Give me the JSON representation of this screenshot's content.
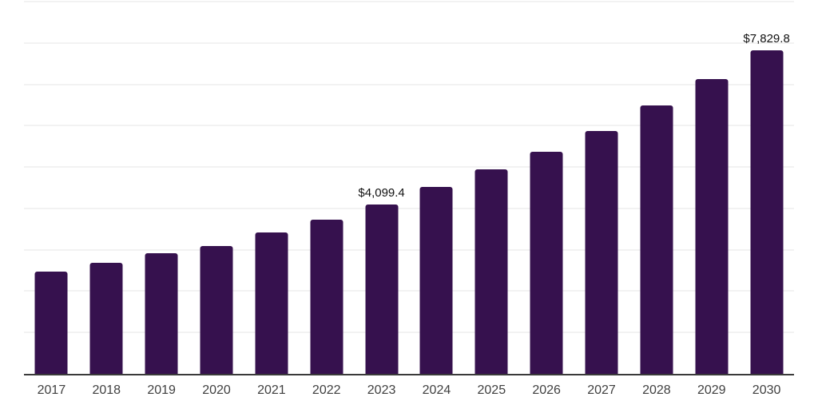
{
  "chart_data": {
    "type": "bar",
    "categories": [
      "2017",
      "2018",
      "2019",
      "2020",
      "2021",
      "2022",
      "2023",
      "2024",
      "2025",
      "2026",
      "2027",
      "2028",
      "2029",
      "2030"
    ],
    "values": [
      2480,
      2680,
      2910,
      3095,
      3410,
      3735,
      4099.4,
      4510,
      4935,
      5375,
      5875,
      6480,
      7130,
      7829.8
    ],
    "annotations": [
      {
        "category": "2023",
        "label": "$4,099.4"
      },
      {
        "category": "2030",
        "label": "$7,829.8"
      }
    ],
    "value_prefix": "$",
    "ylim": [
      0,
      9000
    ],
    "gridline_step": 1000,
    "grid": true,
    "legend": "none",
    "bar_color": "#36114E",
    "gridline_color": "#f2f2f2",
    "axis_line_color": "#3a3a3a",
    "axis_label_color": "#404040",
    "data_label_color": "#111111"
  }
}
